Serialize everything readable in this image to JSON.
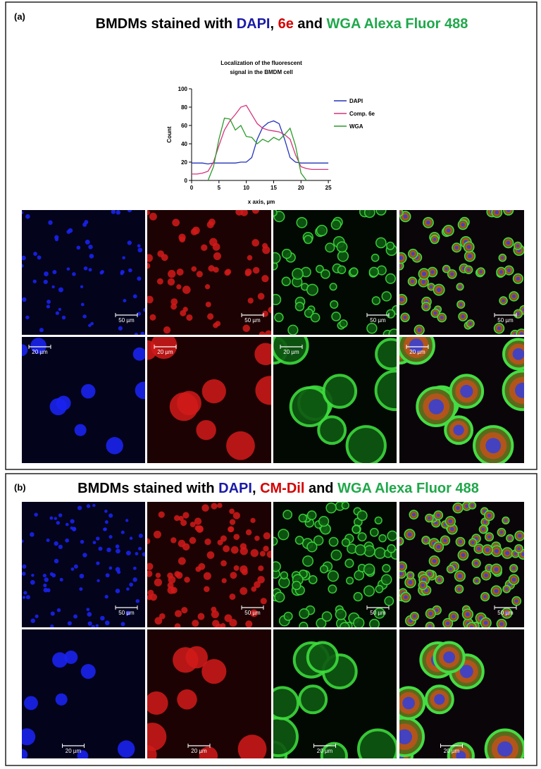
{
  "chart_data": {
    "type": "line",
    "title": [
      "Localization of the fluorescent",
      "signal in the BMDM cell"
    ],
    "x_label": "x axis, µm",
    "y_label": "Count",
    "x": [
      0,
      1,
      2,
      3,
      4,
      5,
      6,
      7,
      8,
      9,
      10,
      11,
      12,
      13,
      14,
      15,
      16,
      17,
      18,
      19,
      20,
      21,
      22,
      23,
      24,
      25
    ],
    "xlim": [
      0,
      25.5
    ],
    "ylim": [
      0,
      100
    ],
    "xticks": [
      0,
      5,
      10,
      15,
      20,
      25
    ],
    "yticks": [
      0,
      20,
      40,
      60,
      80,
      100
    ],
    "legend": "right",
    "series": [
      {
        "name": "DAPI",
        "color": "#2233bb",
        "values": [
          19,
          19,
          19,
          18,
          19,
          19,
          19,
          19,
          19,
          20,
          20,
          25,
          45,
          58,
          63,
          65,
          62,
          45,
          25,
          20,
          19,
          19,
          19,
          19,
          19,
          19
        ]
      },
      {
        "name": "Comp. 6e",
        "color": "#d6337a",
        "values": [
          7,
          7,
          8,
          10,
          20,
          38,
          55,
          65,
          72,
          80,
          82,
          72,
          62,
          57,
          55,
          54,
          53,
          50,
          45,
          28,
          15,
          13,
          12,
          12,
          12,
          12
        ]
      },
      {
        "name": "WGA",
        "color": "#2a9a2a",
        "values": [
          null,
          null,
          null,
          0,
          15,
          45,
          68,
          67,
          55,
          60,
          48,
          47,
          40,
          45,
          42,
          47,
          44,
          50,
          57,
          38,
          8,
          0,
          null,
          null,
          null,
          null
        ]
      }
    ]
  },
  "panels": [
    {
      "label": "(a)",
      "title": [
        "BMDMs stained with ",
        "DAPI",
        ", ",
        "6e",
        " and ",
        "WGA Alexa Fluor 488"
      ],
      "rows": [
        [
          "50 µm",
          "50 µm",
          "50 µm",
          "50 µm"
        ],
        [
          "20 µm",
          "20 µm",
          "20 µm",
          "20 µm"
        ]
      ]
    },
    {
      "label": "(b)",
      "title": [
        "BMDMs stained with ",
        "DAPI",
        ", ",
        "CM-Dil",
        " and ",
        "WGA Alexa Fluor 488"
      ],
      "rows": [
        [
          "50 µm",
          "50 µm",
          "50 µm",
          "50 µm"
        ],
        [
          "20 µm",
          "20 µm",
          "20 µm",
          "20 µm"
        ]
      ]
    }
  ]
}
